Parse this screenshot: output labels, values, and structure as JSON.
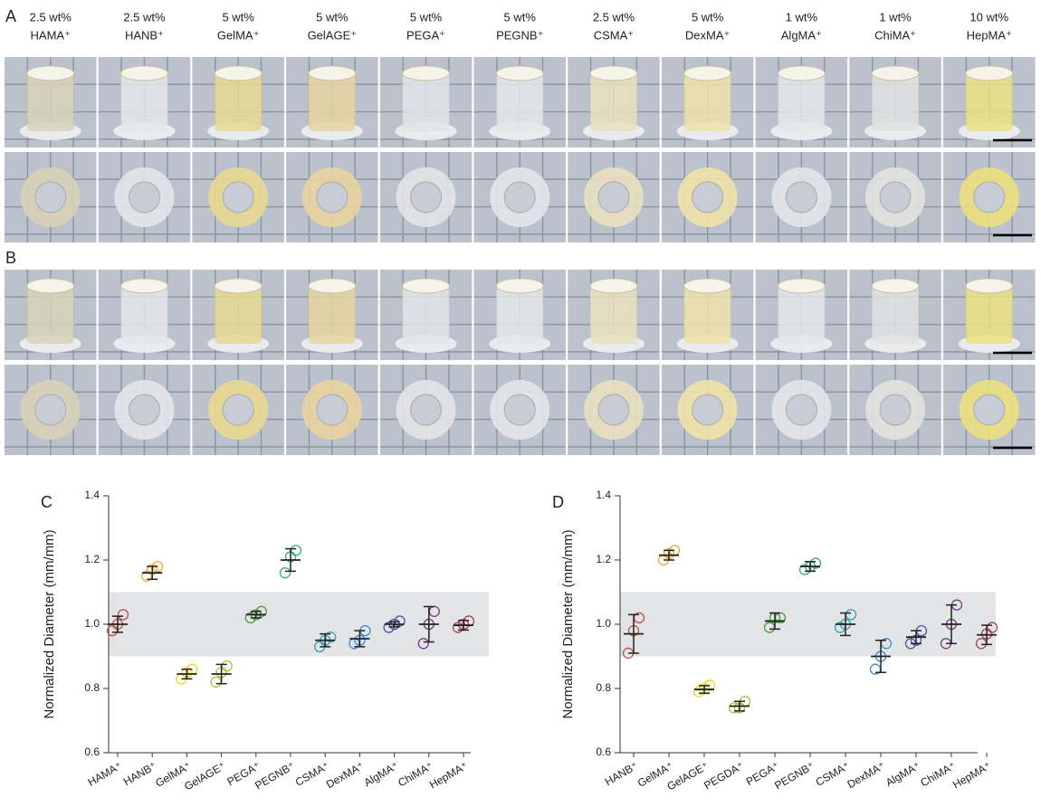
{
  "photos": [
    {
      "panel": "A",
      "columns": [
        {
          "line1": "2.5 wt%",
          "line2": "HAMA⁺"
        },
        {
          "line1": "2.5 wt%",
          "line2": "HANB⁺"
        },
        {
          "line1": "5 wt%",
          "line2": "GelMA⁺"
        },
        {
          "line1": "5 wt%",
          "line2": "GelAGE⁺"
        },
        {
          "line1": "5 wt%",
          "line2": "PEGA⁺"
        },
        {
          "line1": "5 wt%",
          "line2": "PEGNB⁺"
        },
        {
          "line1": "2.5 wt%",
          "line2": "CSMA⁺"
        },
        {
          "line1": "5 wt%",
          "line2": "DexMA⁺"
        },
        {
          "line1": "1 wt%",
          "line2": "AlgMA⁺"
        },
        {
          "line1": "1 wt%",
          "line2": "ChiMA⁺"
        },
        {
          "line1": "10 wt%",
          "line2": "HepMA⁺"
        }
      ]
    },
    {
      "panel": "B"
    }
  ],
  "chart_data": [
    {
      "type": "dot-error",
      "panel": "C",
      "y_label": "Normalized Diameter (mm/mm)",
      "categories": [
        "HAMA⁺",
        "HANB⁺",
        "GelMA⁺",
        "GelAGE⁺",
        "PEGA⁺",
        "PEGNB⁺",
        "CSMA⁺",
        "DexMA⁺",
        "AlgMA⁺",
        "ChiMA⁺",
        "HepMA⁺"
      ],
      "values": [
        1.0,
        1.16,
        0.845,
        0.845,
        1.03,
        1.2,
        0.95,
        0.955,
        1.0,
        1.0,
        0.997
      ],
      "errors": [
        0.025,
        0.02,
        0.015,
        0.03,
        0.01,
        0.035,
        0.02,
        0.025,
        0.008,
        0.055,
        0.015
      ],
      "points": [
        [
          0.98,
          1.0,
          1.03
        ],
        [
          1.15,
          1.17,
          1.18
        ],
        [
          0.83,
          0.85,
          0.86
        ],
        [
          0.82,
          0.85,
          0.87
        ],
        [
          1.02,
          1.03,
          1.04
        ],
        [
          1.16,
          1.21,
          1.23
        ],
        [
          0.93,
          0.95,
          0.96
        ],
        [
          0.94,
          0.95,
          0.98
        ],
        [
          0.99,
          1.0,
          1.01
        ],
        [
          0.94,
          1.0,
          1.04
        ],
        [
          0.99,
          1.0,
          1.01
        ]
      ],
      "colors": [
        "#c0504d",
        "#f0a830",
        "#e8d81a",
        "#a8c040",
        "#4a9a40",
        "#3aaa80",
        "#30a0b8",
        "#3a8ad0",
        "#5050a8",
        "#7a3a8a",
        "#a84060"
      ],
      "band": [
        0.9,
        1.1
      ],
      "ylim": [
        0.6,
        1.4
      ],
      "yticks": [
        0.6,
        0.8,
        {
          "value": 1,
          "label": "1.0"
        },
        1.2,
        1.4
      ]
    },
    {
      "type": "dot-error",
      "panel": "D",
      "y_label": "Normalized Diameter (mm/mm)",
      "categories": [
        "HANB⁺",
        "GelMA⁺",
        "GelAGE⁺",
        "PEGDA⁺",
        "PEGA⁺",
        "PEGNB⁺",
        "CSMA⁺",
        "DexMA⁺",
        "AlgMA⁺",
        "ChiMA⁺",
        "HepMA⁺"
      ],
      "values": [
        0.97,
        1.215,
        0.797,
        0.745,
        1.01,
        1.18,
        1.0,
        0.9,
        0.96,
        1.0,
        0.967
      ],
      "errors": [
        0.06,
        0.015,
        0.012,
        0.015,
        0.025,
        0.015,
        0.035,
        0.05,
        0.02,
        0.06,
        0.03
      ],
      "points": [
        [
          0.91,
          0.98,
          1.02
        ],
        [
          1.2,
          1.22,
          1.23
        ],
        [
          0.79,
          0.8,
          0.81
        ],
        [
          0.74,
          0.74,
          0.76
        ],
        [
          0.99,
          1.02,
          1.02
        ],
        [
          1.17,
          1.18,
          1.19
        ],
        [
          0.99,
          1.0,
          1.03
        ],
        [
          0.86,
          0.9,
          0.94
        ],
        [
          0.94,
          0.95,
          0.98
        ],
        [
          0.94,
          1.0,
          1.06
        ],
        [
          0.94,
          0.97,
          0.99
        ]
      ],
      "colors": [
        "#c0504d",
        "#f0a830",
        "#e8d81a",
        "#a8c040",
        "#4a9a40",
        "#3aaa80",
        "#30a0b8",
        "#3a8ad0",
        "#5050a8",
        "#7a3a8a",
        "#a84060"
      ],
      "band": [
        0.9,
        1.1
      ],
      "ylim": [
        0.6,
        1.4
      ],
      "yticks": [
        0.6,
        0.8,
        {
          "value": 1,
          "label": "1.0"
        },
        1.2,
        1.4
      ]
    }
  ]
}
